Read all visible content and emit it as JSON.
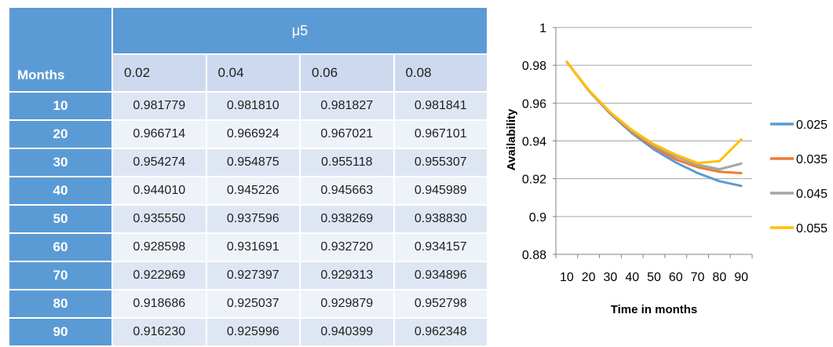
{
  "table": {
    "corner_label": "Months",
    "group_label": "μ5",
    "columns": [
      "0.02",
      "0.04",
      "0.06",
      "0.08"
    ],
    "rows": [
      {
        "month": "10",
        "values": [
          "0.981779",
          "0.981810",
          "0.981827",
          "0.981841"
        ]
      },
      {
        "month": "20",
        "values": [
          "0.966714",
          "0.966924",
          "0.967021",
          "0.967101"
        ]
      },
      {
        "month": "30",
        "values": [
          "0.954274",
          "0.954875",
          "0.955118",
          "0.955307"
        ]
      },
      {
        "month": "40",
        "values": [
          "0.944010",
          "0.945226",
          "0.945663",
          "0.945989"
        ]
      },
      {
        "month": "50",
        "values": [
          "0.935550",
          "0.937596",
          "0.938269",
          "0.938830"
        ]
      },
      {
        "month": "60",
        "values": [
          "0.928598",
          "0.931691",
          "0.932720",
          "0.934157"
        ]
      },
      {
        "month": "70",
        "values": [
          "0.922969",
          "0.927397",
          "0.929313",
          "0.934896"
        ]
      },
      {
        "month": "80",
        "values": [
          "0.918686",
          "0.925037",
          "0.929879",
          "0.952798"
        ]
      },
      {
        "month": "90",
        "values": [
          "0.916230",
          "0.925996",
          "0.940399",
          "0.962348"
        ]
      }
    ]
  },
  "chart_data": {
    "type": "line",
    "title": "",
    "xlabel": "Time in months",
    "ylabel": "Availability",
    "x": [
      10,
      20,
      30,
      40,
      50,
      60,
      70,
      80,
      90
    ],
    "x_tick_labels": [
      "10",
      "20",
      "30",
      "40",
      "50",
      "60",
      "70",
      "80",
      "90"
    ],
    "ylim": [
      0.88,
      1
    ],
    "y_ticks": [
      0.88,
      0.9,
      0.92,
      0.94,
      0.96,
      0.98,
      1
    ],
    "y_tick_labels": [
      "0.88",
      "0.9",
      "0.92",
      "0.94",
      "0.96",
      "0.98",
      "1"
    ],
    "grid": true,
    "legend_position": "right",
    "series": [
      {
        "name": "0.025",
        "color": "#5b9bd5",
        "values": [
          0.9818,
          0.9667,
          0.9543,
          0.944,
          0.9355,
          0.9286,
          0.923,
          0.9187,
          0.9162
        ]
      },
      {
        "name": "0.035",
        "color": "#ed7d31",
        "values": [
          0.9818,
          0.9668,
          0.9546,
          0.9446,
          0.9366,
          0.9302,
          0.9261,
          0.9237,
          0.923
        ]
      },
      {
        "name": "0.045",
        "color": "#a5a5a5",
        "values": [
          0.9818,
          0.9669,
          0.9549,
          0.9452,
          0.9376,
          0.9317,
          0.9274,
          0.925,
          0.928
        ]
      },
      {
        "name": "0.055",
        "color": "#ffc000",
        "values": [
          0.9818,
          0.967,
          0.9551,
          0.9457,
          0.9382,
          0.9327,
          0.9283,
          0.9293,
          0.9408
        ]
      }
    ]
  }
}
